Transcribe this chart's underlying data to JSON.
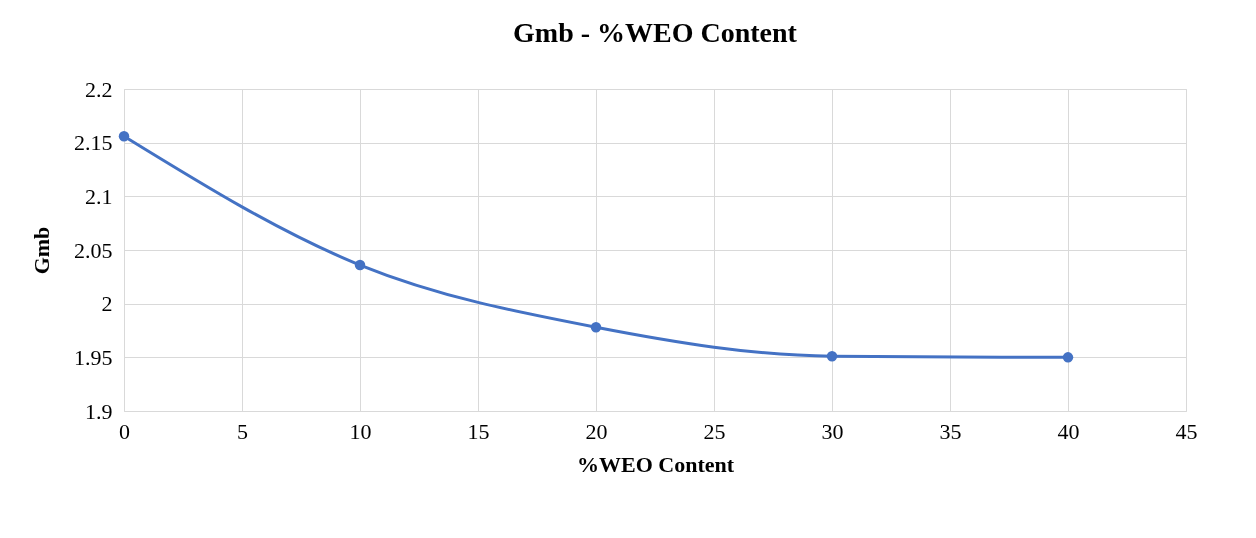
{
  "chart_data": {
    "type": "line",
    "title": "Gmb -  %WEO Content",
    "xlabel": "%WEO Content",
    "ylabel": "Gmb",
    "x": [
      0,
      10,
      20,
      30,
      40
    ],
    "series": [
      {
        "color": "#4472c4",
        "values": [
          2.156,
          2.036,
          1.978,
          1.951,
          1.95
        ]
      }
    ],
    "xlim": [
      0,
      45
    ],
    "xticks": [
      0,
      5,
      10,
      15,
      20,
      25,
      30,
      35,
      40,
      45
    ],
    "ylim": [
      1.9,
      2.2
    ],
    "yticks": [
      1.9,
      1.95,
      2,
      2.05,
      2.1,
      2.15,
      2.2
    ],
    "grid": true,
    "marker": "circle",
    "line_style": "solid",
    "legend": false
  }
}
